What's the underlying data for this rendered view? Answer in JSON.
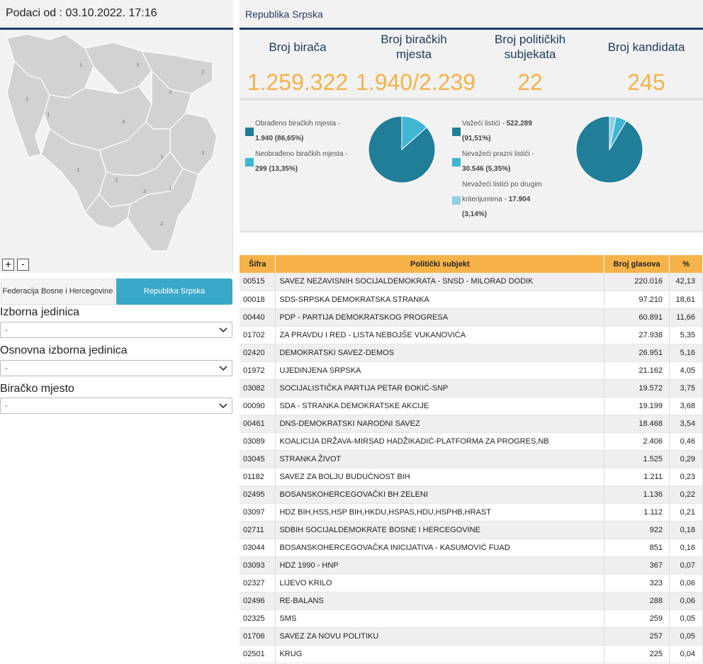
{
  "left": {
    "date_header": "Podaci od : 03.10.2022. 17:16",
    "map_labels": [
      "1",
      "3",
      "2",
      "1",
      "3",
      "1",
      "4",
      "3",
      "2",
      "2",
      "1",
      "3",
      "1",
      "2"
    ],
    "zoom_in": "+",
    "zoom_out": "-",
    "tabs": {
      "fbih": "Federacija Bosne i Hercegovine",
      "rs": "Republika Srpska"
    },
    "filters": [
      {
        "label": "Izborna jedinica",
        "value": "-"
      },
      {
        "label": "Osnovna izborna jedinica",
        "value": "-"
      },
      {
        "label": "Biračko mjesto",
        "value": "-"
      }
    ]
  },
  "summary": {
    "title": "Republika Srpska",
    "stats": [
      {
        "label": "Broj birača",
        "value": "1.259.322"
      },
      {
        "label": "Broj biračkih mjesta",
        "value": "1.940/2.239"
      },
      {
        "label": "Broj političkih subjekata",
        "value": "22"
      },
      {
        "label": "Broj kandidata",
        "value": "245"
      }
    ]
  },
  "charts": {
    "colors": {
      "dark": "#217e99",
      "medium": "#3fb6d4",
      "light": "#8fd0e4"
    },
    "stations": {
      "items": [
        {
          "label": "Obrađeno biračkih mjesta - ",
          "value": "1.940 (86,65%)",
          "percent": 86.65
        },
        {
          "label": "Neobrađeno biračkih mjesta - ",
          "value": "299 (13,35%)",
          "percent": 13.35
        }
      ]
    },
    "ballots": {
      "items": [
        {
          "label": "Važeći listići - ",
          "value": "522.289",
          "value2": "(91,51%)",
          "percent": 91.51
        },
        {
          "label": "Nevažeći prazni listići - ",
          "value": "30.546 (5,35%)",
          "percent": 5.35
        },
        {
          "label": "Nevažeći listići po drugim",
          "label2": "kriterijumima - ",
          "value": "17.904",
          "value2": "(3,14%)",
          "percent": 3.14
        }
      ]
    }
  },
  "table": {
    "headers": {
      "code": "Šifra",
      "name": "Politički subjekt",
      "votes": "Broj glasova",
      "pct": "%"
    },
    "rows": [
      {
        "code": "00515",
        "name": "SAVEZ NEZAVISNIH SOCIJALDEMOKRATA - SNSD - MILORAD DODIK",
        "votes": "220.016",
        "pct": "42,13"
      },
      {
        "code": "00018",
        "name": "SDS-SRPSKA DEMOKRATSKA STRANKA",
        "votes": "97.210",
        "pct": "18,61"
      },
      {
        "code": "00440",
        "name": "PDP - PARTIJA DEMOKRATSKOG PROGRESA",
        "votes": "60.891",
        "pct": "11,66"
      },
      {
        "code": "01702",
        "name": "ZA PRAVDU I RED - LISTA NEBOJŠE VUKANOVIĆA",
        "votes": "27.938",
        "pct": "5,35"
      },
      {
        "code": "02420",
        "name": "DEMOKRATSKI SAVEZ-DEMOS",
        "votes": "26.951",
        "pct": "5,16"
      },
      {
        "code": "01972",
        "name": "UJEDINJENA SRPSKA",
        "votes": "21.162",
        "pct": "4,05"
      },
      {
        "code": "03082",
        "name": "SOCIJALISTIČKA PARTIJA PETAR ĐOKIĆ-SNP",
        "votes": "19.572",
        "pct": "3,75"
      },
      {
        "code": "00090",
        "name": "SDA - STRANKA DEMOKRATSKE AKCIJE",
        "votes": "19.199",
        "pct": "3,68"
      },
      {
        "code": "00461",
        "name": "DNS-DEMOKRATSKI NARODNI SAVEZ",
        "votes": "18.468",
        "pct": "3,54"
      },
      {
        "code": "03089",
        "name": "KOALICIJA DRŽAVA-MIRSAD HADŽIKADIĆ-PLATFORMA ZA PROGRES,NB",
        "votes": "2.406",
        "pct": "0,46"
      },
      {
        "code": "03045",
        "name": "STRANKA ŽIVOT",
        "votes": "1.525",
        "pct": "0,29"
      },
      {
        "code": "01182",
        "name": "SAVEZ ZA BOLJU BUDUĆNOST BIH",
        "votes": "1.211",
        "pct": "0,23"
      },
      {
        "code": "02495",
        "name": "BOSANSKOHERCEGOVAČKI BH ZELENI",
        "votes": "1.136",
        "pct": "0,22"
      },
      {
        "code": "03097",
        "name": "HDZ BIH,HSS,HSP BIH,HKDU,HSPAS,HDU,HSPHB,HRAST",
        "votes": "1.112",
        "pct": "0,21"
      },
      {
        "code": "02711",
        "name": "SDBIH SOCIJALDEMOKRATE BOSNE I HERCEGOVINE",
        "votes": "922",
        "pct": "0,18"
      },
      {
        "code": "03044",
        "name": "BOSANSKOHERCEGOVAČKA INICIJATIVA - KASUMOVIĆ FUAD",
        "votes": "851",
        "pct": "0,16"
      },
      {
        "code": "03093",
        "name": "HDZ 1990 - HNP",
        "votes": "367",
        "pct": "0,07"
      },
      {
        "code": "02327",
        "name": "LIJEVO KRILO",
        "votes": "323",
        "pct": "0,06"
      },
      {
        "code": "02496",
        "name": "RE-BALANS",
        "votes": "288",
        "pct": "0,06"
      },
      {
        "code": "02325",
        "name": "SMS",
        "votes": "259",
        "pct": "0,05"
      },
      {
        "code": "01706",
        "name": "SAVEZ ZA NOVU POLITIKU",
        "votes": "257",
        "pct": "0,05"
      },
      {
        "code": "02501",
        "name": "KRUG",
        "votes": "225",
        "pct": "0,04"
      }
    ]
  }
}
